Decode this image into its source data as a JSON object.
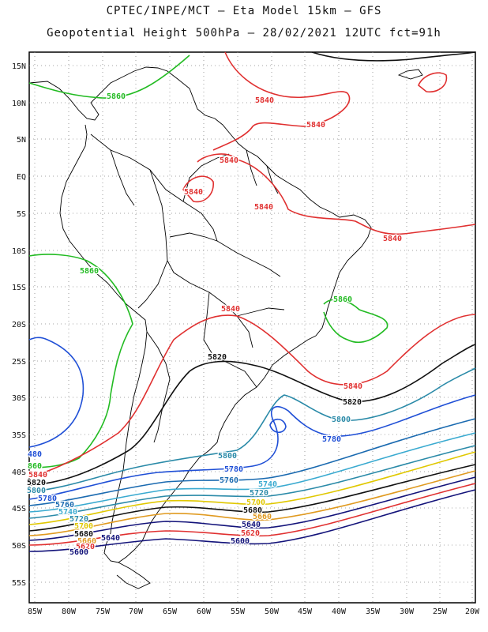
{
  "title": {
    "line1": "CPTEC/INPE/MCT –  Eta Model 15km – GFS",
    "line2": "Geopotential Height 500hPa – 28/02/2021 12UTC fct=91h"
  },
  "axes": {
    "lat_labels": [
      "15N",
      "10N",
      "5N",
      "EQ",
      "5S",
      "10S",
      "15S",
      "20S",
      "25S",
      "30S",
      "35S",
      "40S",
      "45S",
      "50S",
      "55S"
    ],
    "lon_labels": [
      "85W",
      "80W",
      "75W",
      "70W",
      "65W",
      "60W",
      "55W",
      "50W",
      "45W",
      "40W",
      "35W",
      "30W",
      "25W",
      "20W"
    ]
  },
  "contour_labels": [
    {
      "text": "5860",
      "color": "#22bb22"
    },
    {
      "text": "5840",
      "color": "#e03030"
    },
    {
      "text": "5840",
      "color": "#e03030"
    },
    {
      "text": "5840",
      "color": "#e03030"
    },
    {
      "text": "5840",
      "color": "#e03030"
    },
    {
      "text": "5840",
      "color": "#e03030"
    },
    {
      "text": "5840",
      "color": "#e03030"
    },
    {
      "text": "5860",
      "color": "#22bb22"
    },
    {
      "text": "5860",
      "color": "#22bb22"
    },
    {
      "text": "5840",
      "color": "#e03030"
    },
    {
      "text": "5820",
      "color": "#111111"
    },
    {
      "text": "5840",
      "color": "#e03030"
    },
    {
      "text": "5820",
      "color": "#111111"
    },
    {
      "text": "5800",
      "color": "#2a8aa8"
    },
    {
      "text": "5780",
      "color": "#1f4fd6"
    },
    {
      "text": "5800",
      "color": "#2a8aa8"
    },
    {
      "text": "5780",
      "color": "#1f4fd6"
    },
    {
      "text": "5760",
      "color": "#1a6ab0"
    },
    {
      "text": "5740",
      "color": "#3aaad0"
    },
    {
      "text": "5720",
      "color": "#2a8aa8"
    },
    {
      "text": "5700",
      "color": "#e0c800"
    },
    {
      "text": "5680",
      "color": "#111111"
    },
    {
      "text": "5660",
      "color": "#e09a20"
    },
    {
      "text": "5640",
      "color": "#13137a"
    },
    {
      "text": "5620",
      "color": "#e03030"
    },
    {
      "text": "5600",
      "color": "#13137a"
    },
    {
      "text": "480",
      "color": "#1f4fd6"
    },
    {
      "text": "860",
      "color": "#22bb22"
    },
    {
      "text": "5840",
      "color": "#e03030"
    },
    {
      "text": "5820",
      "color": "#111111"
    },
    {
      "text": "5800",
      "color": "#2a8aa8"
    },
    {
      "text": "5780",
      "color": "#1f4fd6"
    },
    {
      "text": "5760",
      "color": "#1a6ab0"
    },
    {
      "text": "5740",
      "color": "#3aaad0"
    },
    {
      "text": "5720",
      "color": "#2a8aa8"
    },
    {
      "text": "5700",
      "color": "#e0c800"
    },
    {
      "text": "5680",
      "color": "#111111"
    },
    {
      "text": "5660",
      "color": "#e09a20"
    },
    {
      "text": "5640",
      "color": "#13137a"
    },
    {
      "text": "5620",
      "color": "#e03030"
    },
    {
      "text": "5600",
      "color": "#13137a"
    }
  ],
  "contour_lines": [
    {
      "name": "5860",
      "color": "#22bb22"
    },
    {
      "name": "5840",
      "color": "#e03030"
    },
    {
      "name": "5820",
      "color": "#111111"
    },
    {
      "name": "5800",
      "color": "#2a8aa8"
    },
    {
      "name": "5780",
      "color": "#1f4fd6"
    },
    {
      "name": "5760",
      "color": "#1a6ab0"
    },
    {
      "name": "5740",
      "color": "#3aaad0"
    },
    {
      "name": "5720",
      "color": "#2a8aa8"
    },
    {
      "name": "5700",
      "color": "#e0c800"
    },
    {
      "name": "5680",
      "color": "#111111"
    },
    {
      "name": "5660",
      "color": "#e09a20"
    },
    {
      "name": "5640",
      "color": "#13137a"
    },
    {
      "name": "5620",
      "color": "#e03030"
    },
    {
      "name": "5600",
      "color": "#13137a"
    }
  ]
}
